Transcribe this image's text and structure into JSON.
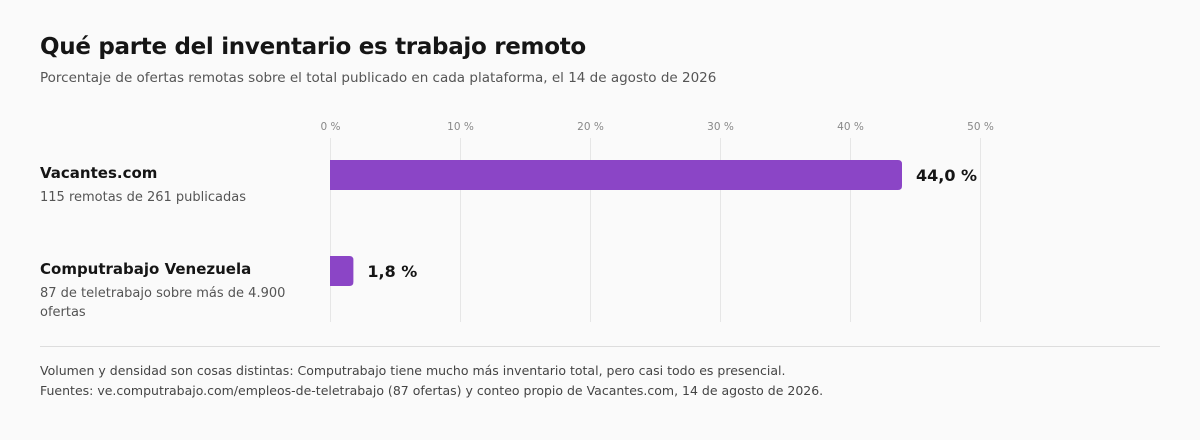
{
  "title": "Qué parte del inventario es trabajo remoto",
  "subtitle": "Porcentaje de ofertas remotas sobre el total publicado en cada plataforma, el 14 de agosto de 2026",
  "chart_data": {
    "type": "bar",
    "orientation": "horizontal",
    "categories": [
      "Vacantes.com",
      "Computrabajo Venezuela"
    ],
    "category_details": [
      "115 remotas de 261 publicadas",
      "87 de teletrabajo sobre más de 4.900 ofertas"
    ],
    "values": [
      44.0,
      1.8
    ],
    "value_labels": [
      "44,0 %",
      "1,8 %"
    ],
    "xlim": [
      0,
      50
    ],
    "ticks": [
      0,
      10,
      20,
      30,
      40,
      50
    ],
    "tick_labels": [
      "0 %",
      "10 %",
      "20 %",
      "30 %",
      "40 %",
      "50 %"
    ],
    "bar_color": "#8b45c6",
    "grid": true
  },
  "footer": {
    "note": "Volumen y densidad son cosas distintas: Computrabajo tiene mucho más inventario total, pero casi todo es presencial.",
    "source": "Fuentes: ve.computrabajo.com/empleos-de-teletrabajo (87 ofertas) y conteo propio de Vacantes.com, 14 de agosto de 2026."
  }
}
